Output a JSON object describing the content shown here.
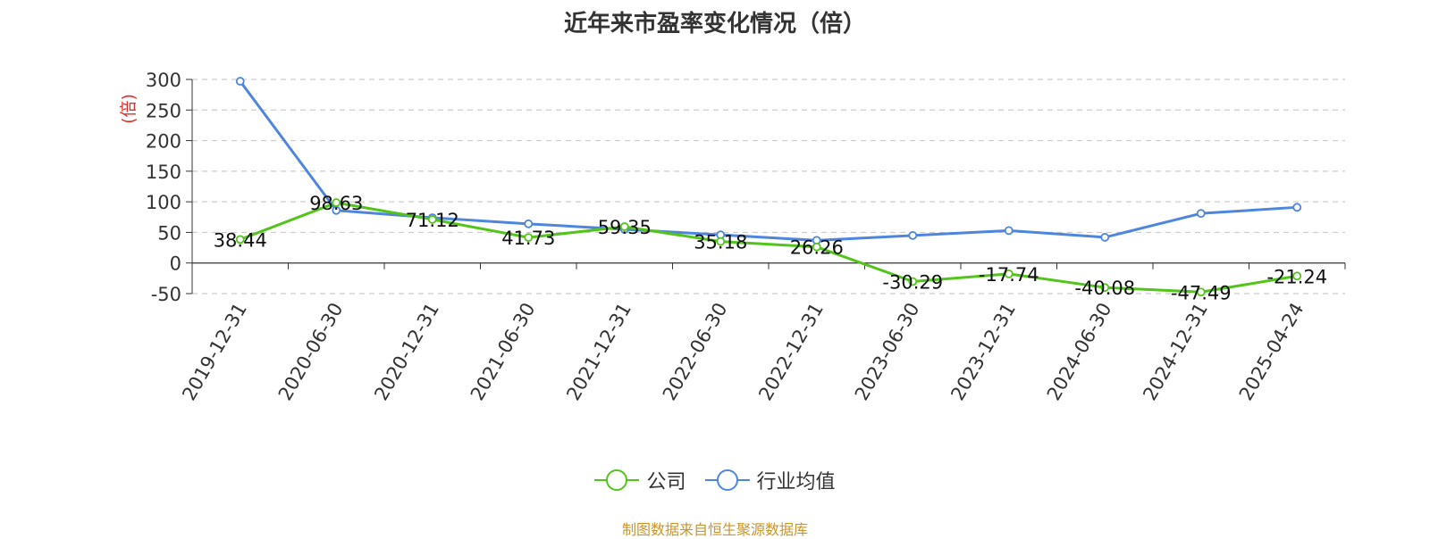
{
  "chart_data": {
    "type": "line",
    "title": "近年来市盈率变化情况（倍）",
    "ylabel": "(倍)",
    "xlabel": "",
    "categories": [
      "2019-12-31",
      "2020-06-30",
      "2020-12-31",
      "2021-06-30",
      "2021-12-31",
      "2022-06-30",
      "2022-12-31",
      "2023-06-30",
      "2023-12-31",
      "2024-06-30",
      "2024-12-31",
      "2025-04-24"
    ],
    "ylim": [
      -50,
      300
    ],
    "yticks": [
      "-50",
      "0",
      "50",
      "100",
      "150",
      "200",
      "250",
      "300"
    ],
    "grid": true,
    "legend_position": "bottom",
    "series": [
      {
        "name": "公司",
        "color": "#52c41a",
        "values": [
          38.44,
          98.63,
          71.12,
          41.73,
          59.35,
          35.18,
          26.26,
          -30.29,
          -17.74,
          -40.08,
          -47.49,
          -21.24
        ],
        "labels": [
          "38.44",
          "98.63",
          "71.12",
          "41.73",
          "59.35",
          "35.18",
          "26.26",
          "-30.29",
          "-17.74",
          "-40.08",
          "-47.49",
          "-21.24"
        ]
      },
      {
        "name": "行业均值",
        "color": "#4f86dd",
        "values": [
          297,
          86,
          74,
          64,
          55,
          46,
          37,
          45,
          53,
          42,
          81,
          91
        ]
      }
    ]
  },
  "source": "制图数据来自恒生聚源数据库"
}
